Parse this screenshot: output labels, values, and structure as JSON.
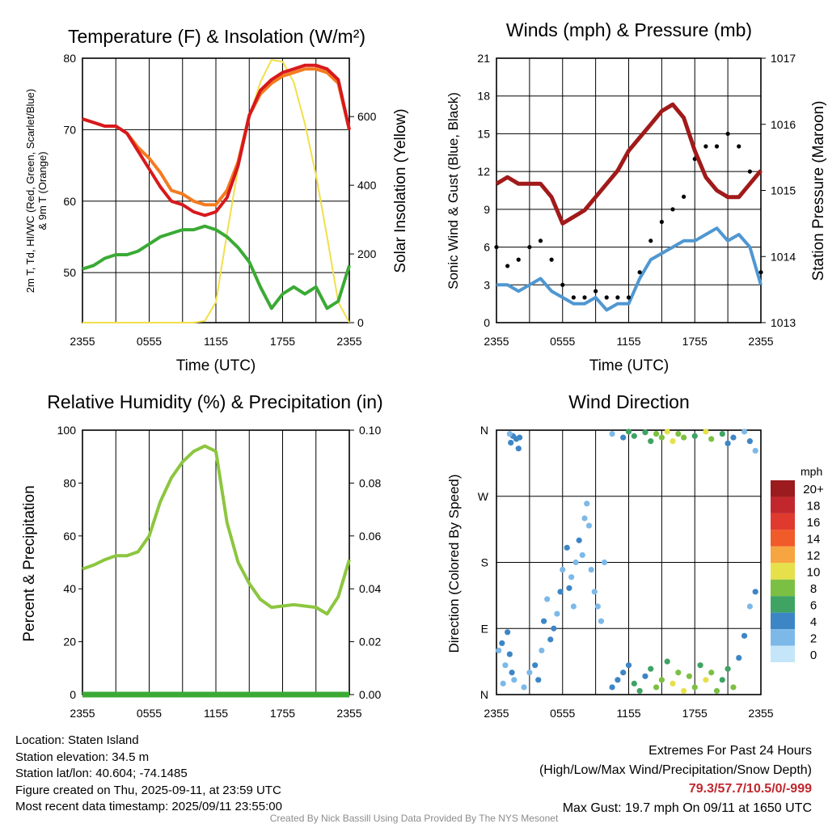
{
  "panels": {
    "temp": {
      "title": "Temperature (F) & Insolation (W/m²)",
      "ylabel_left_1": "2m T, Td, HI/WC (Red, Green, Scarlet/Blue)",
      "ylabel_left_2": "& 9m T (Orange)",
      "ylabel_right": "Solar Insolation (Yellow)",
      "xlabel": "Time (UTC)"
    },
    "wind": {
      "title": "Winds (mph) & Pressure (mb)",
      "ylabel_left": "Sonic Wind & Gust (Blue, Black)",
      "ylabel_right": "Station Pressure (Maroon)",
      "xlabel": "Time (UTC)"
    },
    "rh": {
      "title": "Relative Humidity (%) & Precipitation (in)",
      "ylabel_left": "Percent & Precipitation"
    },
    "wdir": {
      "title": "Wind Direction",
      "ylabel_left": "Direction (Colored By Speed)",
      "colorbar_title": "mph"
    }
  },
  "colors": {
    "temp": "#d7191c",
    "nine_m": "#f47b20",
    "dewpoint": "#3aaa35",
    "hiwc": "#c6262e",
    "insolation": "#f2df4a",
    "wind": "#4f97d1",
    "gust": "#000000",
    "pressure": "#a11a1a",
    "rh": "#8cc63f",
    "precip": "#3aaa35"
  },
  "colorbar": {
    "labels": [
      "20+",
      "18",
      "16",
      "14",
      "12",
      "10",
      "8",
      "6",
      "4",
      "2",
      "0"
    ],
    "colors": [
      "#9b1b1e",
      "#c1272d",
      "#e03a2e",
      "#f15a29",
      "#f7a540",
      "#e6e04a",
      "#7cc043",
      "#3fa364",
      "#3d86c6",
      "#7db9e8",
      "#c4e6f8"
    ]
  },
  "chart_data": [
    {
      "type": "line",
      "title": "Temperature (F) & Insolation (W/m²)",
      "xlabel": "Time (UTC)",
      "x_ticks": [
        "2355",
        "0555",
        "1155",
        "1755",
        "2355"
      ],
      "x_unit": "hours since 2355 UTC 09/10",
      "ylim": [
        43,
        80
      ],
      "y_ticks": [
        50,
        60,
        70,
        80
      ],
      "ylim_right": [
        0,
        770
      ],
      "y_ticks_right": [
        0,
        200,
        400,
        600
      ],
      "x": [
        0,
        1,
        2,
        3,
        4,
        5,
        6,
        7,
        8,
        9,
        10,
        11,
        12,
        13,
        14,
        15,
        16,
        17,
        18,
        19,
        20,
        21,
        22,
        23,
        24
      ],
      "series": [
        {
          "name": "2m T (Red)",
          "values": [
            71.5,
            71,
            70.5,
            70.5,
            69.5,
            67,
            64.5,
            62,
            60,
            59.5,
            58.5,
            58,
            58.5,
            60.5,
            65,
            72,
            75.5,
            77,
            78,
            78.5,
            79,
            79,
            78.5,
            77,
            70
          ]
        },
        {
          "name": "9m T (Orange)",
          "values": [
            71.5,
            71,
            70.5,
            70.5,
            69.5,
            67.5,
            66,
            64,
            61.5,
            61,
            60,
            59.5,
            59.5,
            61.5,
            65.5,
            72,
            75,
            76.5,
            77.5,
            78,
            78.5,
            78.5,
            78,
            76.5,
            70
          ]
        },
        {
          "name": "Td (Green)",
          "values": [
            50.5,
            51,
            52,
            52.5,
            52.5,
            53,
            54,
            55,
            55.5,
            56,
            56,
            56.5,
            56,
            55,
            53.5,
            51.5,
            48,
            45,
            47,
            48,
            47,
            48,
            45,
            46,
            51
          ]
        },
        {
          "name": "HI/WC (Scarlet/Blue)",
          "values": [
            71.5,
            71,
            70.5,
            70.5,
            69.5,
            67,
            64.5,
            62,
            60,
            59.5,
            58.5,
            58,
            58.5,
            60.5,
            65,
            72,
            75.5,
            77,
            78,
            78.5,
            79,
            79,
            78.5,
            77,
            70
          ]
        },
        {
          "name": "Solar Insolation (Yellow)",
          "axis": "right",
          "values": [
            0,
            0,
            0,
            0,
            0,
            0,
            0,
            0,
            0,
            0,
            0,
            5,
            60,
            260,
            450,
            600,
            700,
            765,
            760,
            700,
            580,
            430,
            250,
            60,
            0
          ]
        }
      ]
    },
    {
      "type": "line",
      "title": "Winds (mph) & Pressure (mb)",
      "xlabel": "Time (UTC)",
      "x_ticks": [
        "2355",
        "0555",
        "1155",
        "1755",
        "2355"
      ],
      "ylim": [
        0,
        21
      ],
      "y_ticks": [
        0,
        3,
        6,
        9,
        12,
        15,
        18,
        21
      ],
      "ylim_right": [
        1013,
        1017
      ],
      "y_ticks_right": [
        1013,
        1014,
        1015,
        1016,
        1017
      ],
      "x": [
        0,
        1,
        2,
        3,
        4,
        5,
        6,
        7,
        8,
        9,
        10,
        11,
        12,
        13,
        14,
        15,
        16,
        17,
        18,
        19,
        20,
        21,
        22,
        23,
        24
      ],
      "series": [
        {
          "name": "Sonic Wind (Blue)",
          "values": [
            3,
            3,
            2.5,
            3,
            3.5,
            2.5,
            2,
            1.5,
            1.5,
            2,
            1,
            1.5,
            1.5,
            3.5,
            5,
            5.5,
            6,
            6.5,
            6.5,
            7,
            7.5,
            6.5,
            7,
            6,
            3
          ]
        },
        {
          "name": "Gust (Black)",
          "values": [
            6,
            4.5,
            5,
            6,
            6.5,
            5,
            3,
            2,
            2,
            2.5,
            2,
            2,
            2,
            4,
            6.5,
            8,
            9,
            10,
            13,
            14,
            14,
            15,
            14,
            12,
            4
          ]
        },
        {
          "name": "Station Pressure (Maroon)",
          "axis": "right",
          "values": [
            1015.1,
            1015.2,
            1015.1,
            1015.1,
            1015.1,
            1014.9,
            1014.5,
            1014.6,
            1014.7,
            1014.9,
            1015.1,
            1015.3,
            1015.6,
            1015.8,
            1016.0,
            1016.2,
            1016.3,
            1016.1,
            1015.6,
            1015.2,
            1015.0,
            1014.9,
            1014.9,
            1015.1,
            1015.3
          ]
        }
      ],
      "annotations": [
        "Max Gust: 19.7 mph On 09/11 at 1650 UTC"
      ]
    },
    {
      "type": "line",
      "title": "Relative Humidity (%) & Precipitation (in)",
      "x_ticks": [
        "2355",
        "0555",
        "1155",
        "1755",
        "2355"
      ],
      "ylim": [
        0,
        100
      ],
      "y_ticks": [
        0,
        20,
        40,
        60,
        80,
        100
      ],
      "ylim_right": [
        0,
        0.1
      ],
      "y_ticks_right": [
        "0.00",
        "0.02",
        "0.04",
        "0.06",
        "0.08",
        "0.10"
      ],
      "x": [
        0,
        1,
        2,
        3,
        4,
        5,
        6,
        7,
        8,
        9,
        10,
        11,
        12,
        13,
        14,
        15,
        16,
        17,
        18,
        19,
        20,
        21,
        22,
        23,
        24
      ],
      "series": [
        {
          "name": "Relative Humidity",
          "values": [
            47.5,
            49,
            51,
            52.5,
            52.5,
            54,
            60,
            73,
            82,
            88,
            92,
            94,
            92,
            65,
            50,
            42,
            36,
            33,
            33.5,
            34,
            33.5,
            33,
            30.5,
            37,
            51
          ]
        },
        {
          "name": "Precipitation",
          "axis": "right",
          "values": [
            0,
            0,
            0,
            0,
            0,
            0,
            0,
            0,
            0,
            0,
            0,
            0,
            0,
            0,
            0,
            0,
            0,
            0,
            0,
            0,
            0,
            0,
            0,
            0,
            0
          ]
        }
      ]
    },
    {
      "type": "scatter",
      "title": "Wind Direction",
      "ylabel": "Direction (Colored By Speed)",
      "x_ticks": [
        "2355",
        "0555",
        "1155",
        "1755",
        "2355"
      ],
      "y_ticks": [
        "N",
        "E",
        "S",
        "W",
        "N"
      ],
      "ylim": [
        0,
        360
      ],
      "points": [
        [
          0.2,
          60,
          2
        ],
        [
          0.5,
          70,
          3
        ],
        [
          0.8,
          40,
          2
        ],
        [
          1.0,
          85,
          4
        ],
        [
          1.2,
          55,
          4
        ],
        [
          1.4,
          30,
          3
        ],
        [
          1.6,
          20,
          2
        ],
        [
          0.6,
          15,
          2
        ],
        [
          1.3,
          343,
          4
        ],
        [
          1.5,
          352,
          4
        ],
        [
          1.8,
          348,
          3
        ],
        [
          2.0,
          335,
          3
        ],
        [
          1.2,
          355,
          2
        ],
        [
          2.1,
          350,
          4
        ],
        [
          2.5,
          10,
          2
        ],
        [
          3.0,
          30,
          2
        ],
        [
          3.5,
          40,
          3
        ],
        [
          3.8,
          20,
          4
        ],
        [
          4.1,
          60,
          2
        ],
        [
          4.3,
          100,
          3
        ],
        [
          4.6,
          130,
          2
        ],
        [
          4.9,
          75,
          4
        ],
        [
          5.2,
          90,
          3
        ],
        [
          5.5,
          110,
          2
        ],
        [
          5.8,
          140,
          3
        ],
        [
          6.0,
          170,
          2
        ],
        [
          6.4,
          200,
          3
        ],
        [
          6.8,
          160,
          2
        ],
        [
          7.2,
          180,
          2
        ],
        [
          7.5,
          210,
          3
        ],
        [
          7.8,
          190,
          1
        ],
        [
          8.0,
          240,
          1
        ],
        [
          8.2,
          260,
          1
        ],
        [
          8.4,
          230,
          2
        ],
        [
          8.6,
          170,
          2
        ],
        [
          8.9,
          140,
          2
        ],
        [
          9.2,
          120,
          1
        ],
        [
          9.5,
          100,
          1
        ],
        [
          7.0,
          120,
          2
        ],
        [
          6.6,
          145,
          3
        ],
        [
          9.8,
          180,
          2
        ],
        [
          10.5,
          10,
          3
        ],
        [
          11.0,
          20,
          3
        ],
        [
          11.5,
          30,
          4
        ],
        [
          12.0,
          40,
          3
        ],
        [
          12.5,
          15,
          5
        ],
        [
          13.0,
          5,
          6
        ],
        [
          13.5,
          25,
          4
        ],
        [
          14.0,
          35,
          5
        ],
        [
          14.5,
          10,
          7
        ],
        [
          15.0,
          20,
          8
        ],
        [
          15.5,
          45,
          6
        ],
        [
          16.0,
          15,
          9
        ],
        [
          16.5,
          30,
          8
        ],
        [
          17.0,
          5,
          10
        ],
        [
          17.5,
          25,
          8
        ],
        [
          18.0,
          10,
          7
        ],
        [
          18.5,
          40,
          6
        ],
        [
          19.0,
          20,
          9
        ],
        [
          19.5,
          30,
          8
        ],
        [
          20.0,
          5,
          8
        ],
        [
          20.5,
          20,
          6
        ],
        [
          21.0,
          35,
          5
        ],
        [
          21.5,
          10,
          8
        ],
        [
          22.0,
          50,
          4
        ],
        [
          22.5,
          80,
          3
        ],
        [
          23.0,
          120,
          2
        ],
        [
          23.5,
          140,
          3
        ],
        [
          10.5,
          355,
          2
        ],
        [
          11.5,
          350,
          4
        ],
        [
          12.0,
          358,
          5
        ],
        [
          12.5,
          352,
          6
        ],
        [
          13.5,
          357,
          6
        ],
        [
          14.0,
          345,
          5
        ],
        [
          14.5,
          355,
          7
        ],
        [
          15.0,
          350,
          8
        ],
        [
          15.5,
          358,
          10
        ],
        [
          16.0,
          345,
          9
        ],
        [
          16.5,
          355,
          8
        ],
        [
          17.0,
          350,
          7
        ],
        [
          18.0,
          352,
          6
        ],
        [
          19.0,
          358,
          10
        ],
        [
          19.5,
          348,
          8
        ],
        [
          20.5,
          355,
          6
        ],
        [
          21.0,
          342,
          4
        ],
        [
          21.5,
          350,
          3
        ],
        [
          22.5,
          358,
          2
        ],
        [
          23.0,
          345,
          3
        ],
        [
          23.5,
          332,
          2
        ]
      ]
    }
  ],
  "info": {
    "location": "Location: Staten Island",
    "elevation": "Station elevation: 34.5 m",
    "latlon": "Station lat/lon: 40.604; -74.1485",
    "created": "Figure created on Thu, 2025-09-11, at 23:59 UTC",
    "recent": "Most recent data timestamp: 2025/09/11 23:55:00",
    "extremes_title": "Extremes For Past 24 Hours",
    "extremes_legend": "(High/Low/Max Wind/Precipitation/Snow Depth)",
    "extremes_values": "79.3/57.7/10.5/0/-999",
    "max_gust": "Max Gust: 19.7 mph On 09/11 at 1650 UTC",
    "credit": "Created By Nick Bassill Using Data Provided By The NYS Mesonet"
  }
}
